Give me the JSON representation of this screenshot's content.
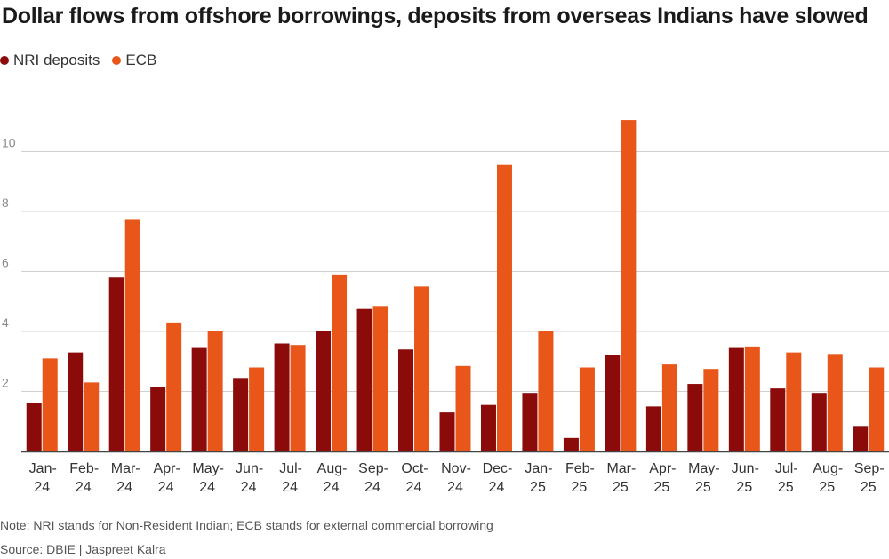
{
  "title": "Dollar flows from offshore borrowings, deposits from overseas Indians have slowed",
  "note": "Note: NRI stands for Non-Resident Indian; ECB stands for external commercial borrowing",
  "source": "Source: DBIE | Jaspreet Kalra",
  "colors": {
    "nri": "#8b0a0a",
    "ecb": "#e8561a",
    "grid": "#d0d0d0",
    "axis": "#444444",
    "tick": "#888888"
  },
  "chart_data": {
    "type": "bar",
    "title": "Dollar flows from offshore borrowings, deposits from overseas Indians have slowed",
    "xlabel": "",
    "ylabel": "",
    "ylim": [
      0,
      12
    ],
    "yticks": [
      "2",
      "4",
      "6",
      "8",
      "10"
    ],
    "legend_position": "top-left",
    "categories": [
      [
        "Jan-",
        "24"
      ],
      [
        "Feb-",
        "24"
      ],
      [
        "Mar-",
        "24"
      ],
      [
        "Apr-",
        "24"
      ],
      [
        "May-",
        "24"
      ],
      [
        "Jun-",
        "24"
      ],
      [
        "Jul-",
        "24"
      ],
      [
        "Aug-",
        "24"
      ],
      [
        "Sep-",
        "24"
      ],
      [
        "Oct-",
        "24"
      ],
      [
        "Nov-",
        "24"
      ],
      [
        "Dec-",
        "24"
      ],
      [
        "Jan-",
        "25"
      ],
      [
        "Feb-",
        "25"
      ],
      [
        "Mar-",
        "25"
      ],
      [
        "Apr-",
        "25"
      ],
      [
        "May-",
        "25"
      ],
      [
        "Jun-",
        "25"
      ],
      [
        "Jul-",
        "25"
      ],
      [
        "Aug-",
        "25"
      ],
      [
        "Sep-",
        "25"
      ]
    ],
    "series": [
      {
        "name": "NRI deposits",
        "color": "#8b0a0a",
        "values": [
          1.6,
          3.3,
          5.8,
          2.15,
          3.45,
          2.45,
          3.6,
          4.0,
          4.75,
          3.4,
          1.3,
          1.55,
          1.95,
          0.45,
          3.2,
          1.5,
          2.25,
          3.45,
          2.1,
          1.95,
          0.85
        ]
      },
      {
        "name": "ECB",
        "color": "#e8561a",
        "values": [
          3.1,
          2.3,
          7.75,
          4.3,
          4.0,
          2.8,
          3.55,
          5.9,
          4.85,
          5.5,
          2.85,
          9.55,
          4.0,
          2.8,
          11.05,
          2.9,
          2.75,
          3.5,
          3.3,
          3.25,
          2.8
        ]
      }
    ]
  }
}
